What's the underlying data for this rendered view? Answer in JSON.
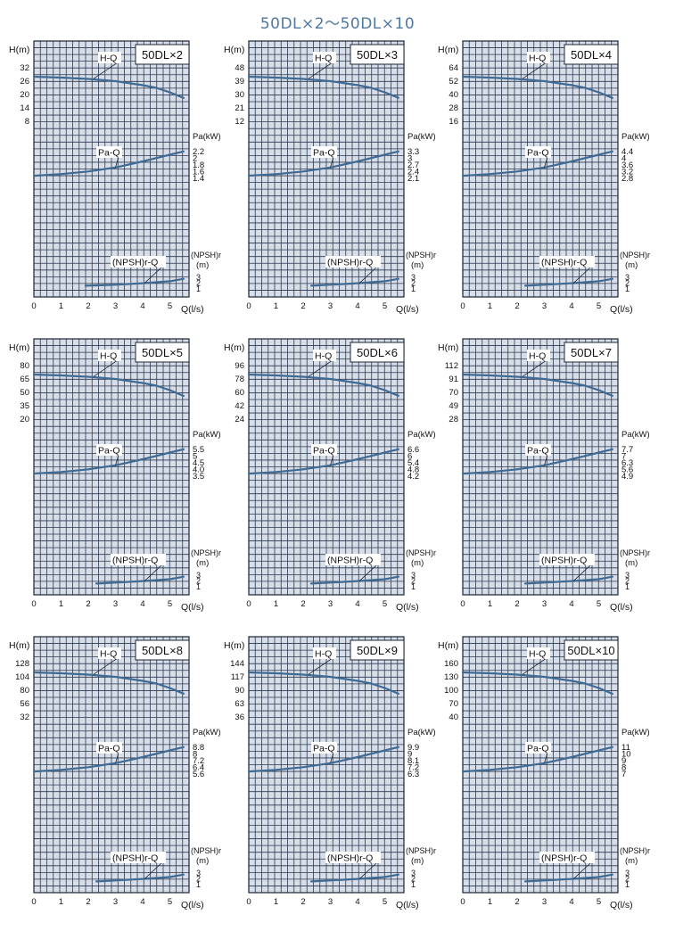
{
  "title": "50DL×2～50DL×10",
  "common": {
    "h_axis_label": "H(m)",
    "pa_axis_label": "Pa(kW)",
    "npsh_axis_label_1": "(NPSH)r",
    "npsh_axis_label_2": "(m)",
    "x_axis_label": "Q(l/s)",
    "hq_label": "H-Q",
    "paq_label": "Pa-Q",
    "npsh_label": "(NPSH)r-Q",
    "x_ticks": [
      "0",
      "1",
      "2",
      "3",
      "4",
      "5"
    ],
    "npsh_ticks": [
      "3",
      "2",
      "1"
    ]
  },
  "chart_data": [
    {
      "type": "line",
      "model": "50DL×2",
      "xlim": [
        0,
        5.7
      ],
      "h_ticks": [
        "32",
        "26",
        "20",
        "14",
        "8"
      ],
      "pa_ticks": [
        "2.2",
        "2",
        "1.8",
        "1.6",
        "1.4"
      ],
      "series": [
        {
          "name": "H-Q",
          "x": [
            0,
            1,
            2,
            3,
            4,
            4.5,
            5,
            5.5
          ],
          "y": [
            28,
            27.6,
            27,
            26,
            24.2,
            23,
            21,
            18.5
          ]
        },
        {
          "name": "Pa-Q",
          "x": [
            0,
            1,
            2,
            3,
            4,
            5,
            5.5
          ],
          "y": [
            1.45,
            1.5,
            1.58,
            1.7,
            1.88,
            2.08,
            2.18
          ]
        },
        {
          "name": "(NPSH)r-Q",
          "x": [
            1.9,
            3,
            4,
            5,
            5.5
          ],
          "y": [
            1.2,
            1.4,
            1.7,
            2.1,
            2.6
          ]
        }
      ]
    },
    {
      "type": "line",
      "model": "50DL×3",
      "xlim": [
        0,
        5.7
      ],
      "h_ticks": [
        "48",
        "39",
        "30",
        "21",
        "12"
      ],
      "pa_ticks": [
        "3.3",
        "3",
        "2.7",
        "2.4",
        "2.1"
      ],
      "series": [
        {
          "name": "H-Q",
          "x": [
            0,
            1,
            2,
            3,
            4,
            4.5,
            5,
            5.5
          ],
          "y": [
            42,
            41.4,
            40.5,
            39,
            36.3,
            34.5,
            31.5,
            27.8
          ]
        },
        {
          "name": "Pa-Q",
          "x": [
            0,
            1,
            2,
            3,
            4,
            5,
            5.5
          ],
          "y": [
            2.18,
            2.25,
            2.37,
            2.55,
            2.82,
            3.12,
            3.27
          ]
        },
        {
          "name": "(NPSH)r-Q",
          "x": [
            2.3,
            3,
            4,
            5,
            5.5
          ],
          "y": [
            1.2,
            1.4,
            1.7,
            2.1,
            2.6
          ]
        }
      ]
    },
    {
      "type": "line",
      "model": "50DL×4",
      "xlim": [
        0,
        5.7
      ],
      "h_ticks": [
        "64",
        "52",
        "40",
        "28",
        "16"
      ],
      "pa_ticks": [
        "4.4",
        "4",
        "3.6",
        "3.2",
        "2.8"
      ],
      "series": [
        {
          "name": "H-Q",
          "x": [
            0,
            1,
            2,
            3,
            4,
            4.5,
            5,
            5.5
          ],
          "y": [
            56,
            55.2,
            54,
            52,
            48.4,
            46,
            42,
            37
          ]
        },
        {
          "name": "Pa-Q",
          "x": [
            0,
            1,
            2,
            3,
            4,
            5,
            5.5
          ],
          "y": [
            2.9,
            3,
            3.16,
            3.4,
            3.76,
            4.16,
            4.36
          ]
        },
        {
          "name": "(NPSH)r-Q",
          "x": [
            2.3,
            3,
            4,
            5,
            5.5
          ],
          "y": [
            1.2,
            1.4,
            1.7,
            2.1,
            2.6
          ]
        }
      ]
    },
    {
      "type": "line",
      "model": "50DL×5",
      "xlim": [
        0,
        5.7
      ],
      "h_ticks": [
        "80",
        "65",
        "50",
        "35",
        "20"
      ],
      "pa_ticks": [
        "5.5",
        "5",
        "4.5",
        "4.0",
        "3.5"
      ],
      "series": [
        {
          "name": "H-Q",
          "x": [
            0,
            1,
            2,
            3,
            4,
            4.5,
            5,
            5.5
          ],
          "y": [
            70,
            69,
            67.5,
            65,
            60.5,
            57.5,
            52.5,
            46
          ]
        },
        {
          "name": "Pa-Q",
          "x": [
            0,
            1,
            2,
            3,
            4,
            5,
            5.5
          ],
          "y": [
            3.63,
            3.75,
            3.95,
            4.25,
            4.7,
            5.2,
            5.45
          ]
        },
        {
          "name": "(NPSH)r-Q",
          "x": [
            2.3,
            3,
            4,
            5,
            5.5
          ],
          "y": [
            1.2,
            1.4,
            1.7,
            2.1,
            2.6
          ]
        }
      ]
    },
    {
      "type": "line",
      "model": "50DL×6",
      "xlim": [
        0,
        5.7
      ],
      "h_ticks": [
        "96",
        "78",
        "60",
        "42",
        "24"
      ],
      "pa_ticks": [
        "6.6",
        "6",
        "5.4",
        "4.8",
        "4.2"
      ],
      "series": [
        {
          "name": "H-Q",
          "x": [
            0,
            1,
            2,
            3,
            4,
            4.5,
            5,
            5.5
          ],
          "y": [
            84,
            82.8,
            81,
            78,
            72.6,
            69,
            63,
            55.5
          ]
        },
        {
          "name": "Pa-Q",
          "x": [
            0,
            1,
            2,
            3,
            4,
            5,
            5.5
          ],
          "y": [
            4.35,
            4.5,
            4.74,
            5.1,
            5.64,
            6.24,
            6.54
          ]
        },
        {
          "name": "(NPSH)r-Q",
          "x": [
            2.3,
            3,
            4,
            5,
            5.5
          ],
          "y": [
            1.2,
            1.4,
            1.7,
            2.1,
            2.6
          ]
        }
      ]
    },
    {
      "type": "line",
      "model": "50DL×7",
      "xlim": [
        0,
        5.7
      ],
      "h_ticks": [
        "112",
        "91",
        "70",
        "49",
        "28"
      ],
      "pa_ticks": [
        "7.7",
        "7",
        "6.3",
        "5.6",
        "4.9"
      ],
      "series": [
        {
          "name": "H-Q",
          "x": [
            0,
            1,
            2,
            3,
            4,
            4.5,
            5,
            5.5
          ],
          "y": [
            98,
            96.6,
            94.5,
            91,
            84.7,
            80.5,
            73.5,
            64.5
          ]
        },
        {
          "name": "Pa-Q",
          "x": [
            0,
            1,
            2,
            3,
            4,
            5,
            5.5
          ],
          "y": [
            5.08,
            5.25,
            5.53,
            5.95,
            6.58,
            7.28,
            7.63
          ]
        },
        {
          "name": "(NPSH)r-Q",
          "x": [
            2.3,
            3,
            4,
            5,
            5.5
          ],
          "y": [
            1.2,
            1.4,
            1.7,
            2.1,
            2.6
          ]
        }
      ]
    },
    {
      "type": "line",
      "model": "50DL×8",
      "xlim": [
        0,
        5.7
      ],
      "h_ticks": [
        "128",
        "104",
        "80",
        "56",
        "32"
      ],
      "pa_ticks": [
        "8.8",
        "8",
        "7.2",
        "6.4",
        "5.6"
      ],
      "series": [
        {
          "name": "H-Q",
          "x": [
            0,
            1,
            2,
            3,
            4,
            4.5,
            5,
            5.5
          ],
          "y": [
            112,
            110.4,
            108,
            104,
            96.8,
            92,
            84,
            74
          ]
        },
        {
          "name": "Pa-Q",
          "x": [
            0,
            1,
            2,
            3,
            4,
            5,
            5.5
          ],
          "y": [
            5.8,
            6,
            6.32,
            6.8,
            7.52,
            8.32,
            8.72
          ]
        },
        {
          "name": "(NPSH)r-Q",
          "x": [
            2.3,
            3,
            4,
            5,
            5.5
          ],
          "y": [
            1.2,
            1.4,
            1.7,
            2.1,
            2.6
          ]
        }
      ]
    },
    {
      "type": "line",
      "model": "50DL×9",
      "xlim": [
        0,
        5.7
      ],
      "h_ticks": [
        "144",
        "117",
        "90",
        "63",
        "36"
      ],
      "pa_ticks": [
        "9.9",
        "9",
        "8.1",
        "7.2",
        "6.3"
      ],
      "series": [
        {
          "name": "H-Q",
          "x": [
            0,
            1,
            2,
            3,
            4,
            4.5,
            5,
            5.5
          ],
          "y": [
            126,
            124.2,
            121.5,
            117,
            108.9,
            103.5,
            94.5,
            83
          ]
        },
        {
          "name": "Pa-Q",
          "x": [
            0,
            1,
            2,
            3,
            4,
            5,
            5.5
          ],
          "y": [
            6.53,
            6.75,
            7.11,
            7.65,
            8.46,
            9.36,
            9.81
          ]
        },
        {
          "name": "(NPSH)r-Q",
          "x": [
            2.3,
            3,
            4,
            5,
            5.5
          ],
          "y": [
            1.2,
            1.4,
            1.7,
            2.1,
            2.6
          ]
        }
      ]
    },
    {
      "type": "line",
      "model": "50DL×10",
      "xlim": [
        0,
        5.7
      ],
      "h_ticks": [
        "160",
        "130",
        "100",
        "70",
        "40"
      ],
      "pa_ticks": [
        "11",
        "10",
        "9",
        "8",
        "7"
      ],
      "series": [
        {
          "name": "H-Q",
          "x": [
            0,
            1,
            2,
            3,
            4,
            4.5,
            5,
            5.5
          ],
          "y": [
            140,
            138,
            135,
            130,
            121,
            115,
            105,
            92
          ]
        },
        {
          "name": "Pa-Q",
          "x": [
            0,
            1,
            2,
            3,
            4,
            5,
            5.5
          ],
          "y": [
            7.25,
            7.5,
            7.9,
            8.5,
            9.4,
            10.4,
            10.9
          ]
        },
        {
          "name": "(NPSH)r-Q",
          "x": [
            2.3,
            3,
            4,
            5,
            5.5
          ],
          "y": [
            1.2,
            1.4,
            1.7,
            2.1,
            2.6
          ]
        }
      ]
    }
  ]
}
